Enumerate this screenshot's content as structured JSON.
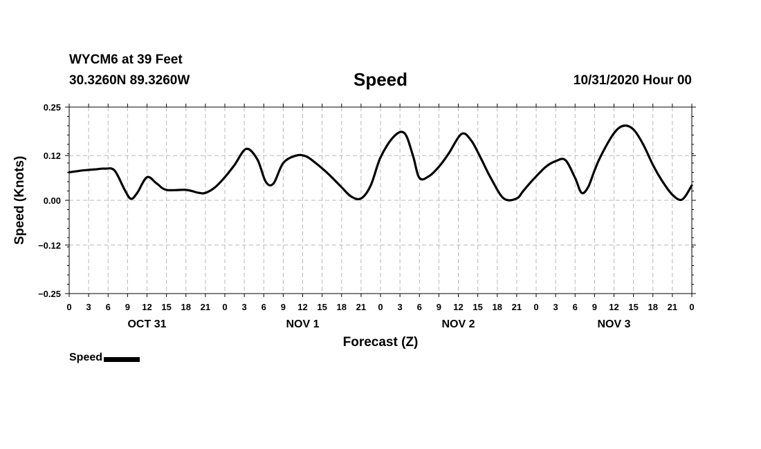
{
  "header": {
    "station": "WYCM6 at 39 Feet",
    "coords": "30.3260N 89.3260W",
    "title": "Speed",
    "timestamp": "10/31/2020 Hour 00"
  },
  "legend": {
    "label": "Speed"
  },
  "chart_data": {
    "type": "line",
    "title": "Speed",
    "xlabel": "Forecast (Z)",
    "ylabel": "Speed (Knots)",
    "x_unit": "hours from 10/31/2020 00Z",
    "xlim": [
      0,
      96
    ],
    "ylim": [
      -0.25,
      0.25
    ],
    "yticks": [
      -0.25,
      -0.12,
      0.0,
      0.12,
      0.25
    ],
    "ytick_labels": [
      "−0.25",
      "−0.12",
      "0.00",
      "0.12",
      "0.25"
    ],
    "xticks": [
      0,
      3,
      6,
      9,
      12,
      15,
      18,
      21,
      24,
      27,
      30,
      33,
      36,
      39,
      42,
      45,
      48,
      51,
      54,
      57,
      60,
      63,
      66,
      69,
      72,
      75,
      78,
      81,
      84,
      87,
      90,
      93,
      96
    ],
    "xtick_labels": [
      "0",
      "3",
      "6",
      "9",
      "12",
      "15",
      "18",
      "21",
      "0",
      "3",
      "6",
      "9",
      "12",
      "15",
      "18",
      "21",
      "0",
      "3",
      "6",
      "9",
      "12",
      "15",
      "18",
      "21",
      "0",
      "3",
      "6",
      "9",
      "12",
      "15",
      "18",
      "21",
      "0"
    ],
    "day_labels": [
      {
        "x": 12,
        "label": "OCT 31"
      },
      {
        "x": 36,
        "label": "NOV 1"
      },
      {
        "x": 60,
        "label": "NOV 2"
      },
      {
        "x": 84,
        "label": "NOV 3"
      }
    ],
    "grid": true,
    "legend_position": "bottom-left",
    "series": [
      {
        "name": "Speed",
        "color": "#000000",
        "x": [
          0,
          2,
          4,
          5.5,
          7,
          8.5,
          9.5,
          10.5,
          12,
          13.5,
          15,
          18,
          20,
          21,
          22.5,
          24,
          25.5,
          27.3,
          29,
          30.3,
          31.5,
          33,
          35,
          36.5,
          38,
          40,
          42,
          43.5,
          45,
          46.5,
          48,
          50,
          51.7,
          53,
          54,
          55.5,
          57,
          58.5,
          60.5,
          62,
          63.5,
          65,
          67,
          69,
          70,
          71.5,
          73.5,
          75,
          76.5,
          78,
          79,
          80,
          81,
          82,
          84,
          85.5,
          87,
          88.5,
          90,
          91.5,
          93,
          94.5,
          96
        ],
        "y": [
          0.075,
          0.08,
          0.083,
          0.085,
          0.08,
          0.03,
          0.004,
          0.02,
          0.062,
          0.045,
          0.028,
          0.028,
          0.02,
          0.02,
          0.035,
          0.062,
          0.095,
          0.138,
          0.11,
          0.05,
          0.045,
          0.1,
          0.12,
          0.118,
          0.1,
          0.07,
          0.035,
          0.01,
          0.005,
          0.04,
          0.115,
          0.17,
          0.18,
          0.12,
          0.06,
          0.065,
          0.09,
          0.125,
          0.178,
          0.16,
          0.112,
          0.06,
          0.005,
          0.005,
          0.025,
          0.055,
          0.09,
          0.105,
          0.108,
          0.06,
          0.02,
          0.035,
          0.08,
          0.12,
          0.18,
          0.2,
          0.19,
          0.15,
          0.095,
          0.05,
          0.015,
          0.002,
          0.04
        ]
      }
    ]
  }
}
